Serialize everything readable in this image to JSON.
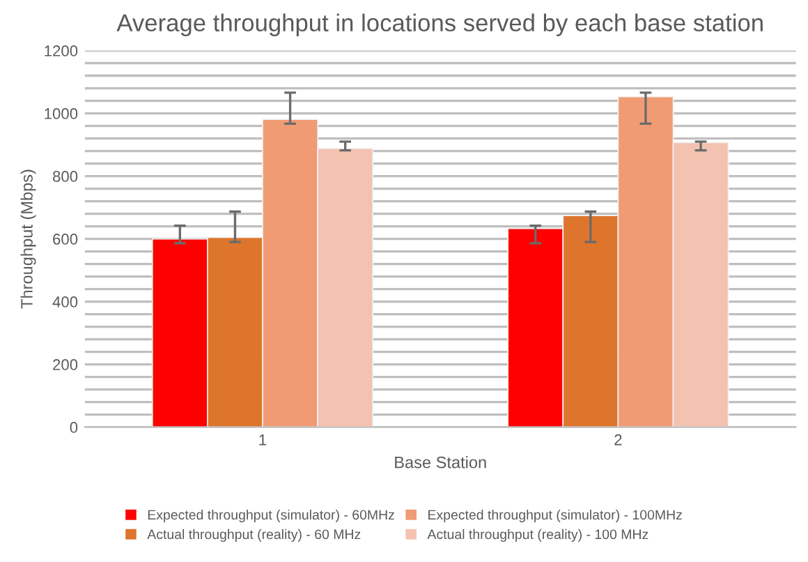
{
  "chart_data": {
    "type": "bar",
    "title": "Average throughput in locations served by each base station",
    "xlabel": "Base Station",
    "ylabel": "Throughput (Mbps)",
    "categories": [
      "1",
      "2"
    ],
    "series": [
      {
        "name": "Expected throughput (simulator) - 60MHz",
        "color": "#ff0000",
        "values": [
          600,
          633
        ],
        "errors": [
          [
            586,
            642
          ],
          [
            586,
            642
          ]
        ]
      },
      {
        "name": "Actual throughput (reality) - 60 MHz",
        "color": "#de752d",
        "values": [
          605,
          674
        ],
        "errors": [
          [
            590,
            687
          ],
          [
            590,
            687
          ]
        ]
      },
      {
        "name": "Expected throughput (simulator) - 100MHz",
        "color": "#f09b73",
        "values": [
          981,
          1053
        ],
        "errors": [
          [
            967,
            1066
          ],
          [
            967,
            1066
          ]
        ]
      },
      {
        "name": "Actual throughput (reality) - 100 MHz",
        "color": "#f4c2b1",
        "values": [
          888,
          907
        ],
        "errors": [
          [
            882,
            910
          ],
          [
            882,
            910
          ]
        ]
      }
    ],
    "ylim": [
      0,
      1200
    ],
    "yticks": [
      0,
      {
        "value": 40,
        "label": null
      },
      {
        "value": 80,
        "label": null
      },
      {
        "value": 120,
        "label": null
      },
      {
        "value": 160,
        "label": null
      },
      200,
      {
        "value": 240,
        "label": null
      },
      {
        "value": 280,
        "label": null
      },
      {
        "value": 320,
        "label": null
      },
      {
        "value": 360,
        "label": null
      },
      400,
      {
        "value": 440,
        "label": null
      },
      {
        "value": 480,
        "label": null
      },
      {
        "value": 520,
        "label": null
      },
      {
        "value": 560,
        "label": null
      },
      600,
      {
        "value": 640,
        "label": null
      },
      {
        "value": 680,
        "label": null
      },
      {
        "value": 720,
        "label": null
      },
      {
        "value": 760,
        "label": null
      },
      800,
      {
        "value": 840,
        "label": null
      },
      {
        "value": 880,
        "label": null
      },
      {
        "value": 920,
        "label": null
      },
      {
        "value": 960,
        "label": null
      },
      1000,
      {
        "value": 1040,
        "label": null
      },
      {
        "value": 1080,
        "label": null
      },
      {
        "value": 1120,
        "label": null
      },
      {
        "value": 1160,
        "label": null
      },
      1200
    ],
    "grid": "y",
    "legend": "bottom"
  }
}
